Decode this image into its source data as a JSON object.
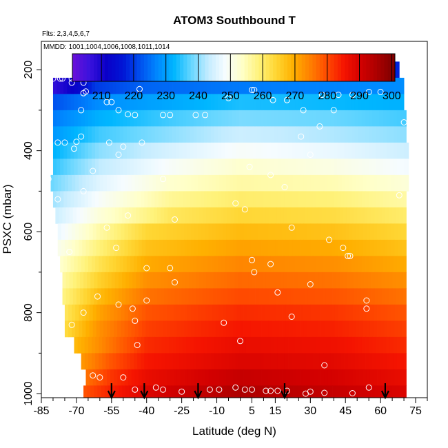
{
  "chart_data": {
    "type": "heatmap",
    "title": "ATOM3 Southbound T",
    "annotations": {
      "flights": "Flts: 2,3,4,5,6,7",
      "dates": "MMDD: 1001,1004,1006,1008,1011,1014"
    },
    "xlabel": "Latitude (deg N)",
    "ylabel": "PSXC (mbar)",
    "xlim": [
      -85,
      80
    ],
    "ylim": [
      1010,
      130
    ],
    "y_reversed": true,
    "x_ticks": [
      -85,
      -70,
      -55,
      -40,
      -25,
      -10,
      5,
      15,
      30,
      45,
      60,
      75
    ],
    "x_minor_ticks": [
      -80,
      -75,
      -65,
      -60,
      -50,
      -45,
      -35,
      -30,
      -20,
      -15,
      -5,
      0,
      10,
      20,
      25,
      35,
      40,
      50,
      55,
      65,
      70,
      80
    ],
    "y_ticks": [
      200,
      400,
      600,
      800,
      1000
    ],
    "y_minor_ticks": [
      300,
      500,
      700,
      900
    ],
    "colorbar": {
      "min": 201,
      "max": 301,
      "ticks": [
        210,
        220,
        230,
        240,
        250,
        260,
        270,
        280,
        290,
        300
      ],
      "colors": [
        "#6a0fd8",
        "#3b12dd",
        "#0a00c8",
        "#0016d6",
        "#0050ee",
        "#0088ff",
        "#00b6ff",
        "#66d6ff",
        "#c4ecff",
        "#f6fcff",
        "#ffffc8",
        "#fff27a",
        "#ffd633",
        "#ffb000",
        "#ff8000",
        "#ff4a00",
        "#f51400",
        "#d20000",
        "#a80000",
        "#7a0000"
      ]
    },
    "levels": [
      {
        "p": 200,
        "lat_min": -61,
        "lat_max": 68,
        "t": [
          [
            -61,
            220
          ],
          [
            -40,
            219
          ],
          [
            0,
            217
          ],
          [
            40,
            217
          ],
          [
            68,
            218
          ]
        ]
      },
      {
        "p": 240,
        "lat_min": -80,
        "lat_max": 70,
        "t": [
          [
            -80,
            207
          ],
          [
            -68,
            214
          ],
          [
            -62,
            220
          ],
          [
            -40,
            224
          ],
          [
            0,
            226
          ],
          [
            40,
            227
          ],
          [
            70,
            228
          ]
        ]
      },
      {
        "p": 280,
        "lat_min": -80,
        "lat_max": 70,
        "t": [
          [
            -80,
            222
          ],
          [
            -60,
            228
          ],
          [
            -30,
            231
          ],
          [
            0,
            234
          ],
          [
            40,
            233
          ],
          [
            70,
            232
          ]
        ]
      },
      {
        "p": 320,
        "lat_min": -80,
        "lat_max": 71,
        "t": [
          [
            -80,
            226
          ],
          [
            -60,
            232
          ],
          [
            -30,
            236
          ],
          [
            0,
            239
          ],
          [
            40,
            238
          ],
          [
            71,
            236
          ]
        ]
      },
      {
        "p": 360,
        "lat_min": -80,
        "lat_max": 71,
        "t": [
          [
            -80,
            229
          ],
          [
            -60,
            236
          ],
          [
            -30,
            240
          ],
          [
            0,
            244
          ],
          [
            40,
            242
          ],
          [
            71,
            240
          ]
        ]
      },
      {
        "p": 400,
        "lat_min": -80,
        "lat_max": 72,
        "t": [
          [
            -80,
            232
          ],
          [
            -60,
            240
          ],
          [
            -30,
            245
          ],
          [
            0,
            249
          ],
          [
            40,
            247
          ],
          [
            72,
            244
          ]
        ]
      },
      {
        "p": 440,
        "lat_min": -80,
        "lat_max": 72,
        "t": [
          [
            -80,
            235
          ],
          [
            -60,
            243
          ],
          [
            -30,
            249
          ],
          [
            0,
            253
          ],
          [
            40,
            251
          ],
          [
            72,
            248
          ]
        ]
      },
      {
        "p": 480,
        "lat_min": -81,
        "lat_max": 72,
        "t": [
          [
            -81,
            238
          ],
          [
            -60,
            246
          ],
          [
            -30,
            253
          ],
          [
            0,
            256
          ],
          [
            40,
            255
          ],
          [
            72,
            252
          ]
        ]
      },
      {
        "p": 520,
        "lat_min": -80,
        "lat_max": 71,
        "t": [
          [
            -80,
            241
          ],
          [
            -60,
            249
          ],
          [
            -30,
            257
          ],
          [
            0,
            260
          ],
          [
            40,
            259
          ],
          [
            71,
            256
          ]
        ]
      },
      {
        "p": 560,
        "lat_min": -79,
        "lat_max": 71,
        "t": [
          [
            -79,
            244
          ],
          [
            -60,
            252
          ],
          [
            -30,
            261
          ],
          [
            0,
            264
          ],
          [
            40,
            263
          ],
          [
            71,
            260
          ]
        ]
      },
      {
        "p": 600,
        "lat_min": -78,
        "lat_max": 71,
        "t": [
          [
            -78,
            247
          ],
          [
            -60,
            256
          ],
          [
            -40,
            264
          ],
          [
            0,
            268
          ],
          [
            40,
            267
          ],
          [
            71,
            264
          ]
        ]
      },
      {
        "p": 640,
        "lat_min": -78,
        "lat_max": 71,
        "t": [
          [
            -78,
            250
          ],
          [
            -60,
            259
          ],
          [
            -40,
            267
          ],
          [
            0,
            271
          ],
          [
            40,
            270
          ],
          [
            71,
            267
          ]
        ]
      },
      {
        "p": 680,
        "lat_min": -77,
        "lat_max": 71,
        "t": [
          [
            -77,
            253
          ],
          [
            -60,
            262
          ],
          [
            -40,
            270
          ],
          [
            0,
            274
          ],
          [
            40,
            273
          ],
          [
            71,
            270
          ]
        ]
      },
      {
        "p": 720,
        "lat_min": -76,
        "lat_max": 71,
        "t": [
          [
            -76,
            256
          ],
          [
            -60,
            265
          ],
          [
            -40,
            273
          ],
          [
            0,
            277
          ],
          [
            40,
            276
          ],
          [
            71,
            273
          ]
        ]
      },
      {
        "p": 760,
        "lat_min": -76,
        "lat_max": 71,
        "t": [
          [
            -76,
            258
          ],
          [
            -60,
            268
          ],
          [
            -40,
            276
          ],
          [
            0,
            280
          ],
          [
            40,
            279
          ],
          [
            71,
            276
          ]
        ]
      },
      {
        "p": 800,
        "lat_min": -75,
        "lat_max": 71,
        "t": [
          [
            -75,
            261
          ],
          [
            -60,
            271
          ],
          [
            -40,
            279
          ],
          [
            0,
            283
          ],
          [
            40,
            282
          ],
          [
            71,
            279
          ]
        ]
      },
      {
        "p": 840,
        "lat_min": -75,
        "lat_max": 71,
        "t": [
          [
            -75,
            263
          ],
          [
            -60,
            273
          ],
          [
            -40,
            281
          ],
          [
            0,
            285
          ],
          [
            40,
            284
          ],
          [
            71,
            281
          ]
        ]
      },
      {
        "p": 880,
        "lat_min": -71,
        "lat_max": 71,
        "t": [
          [
            -71,
            268
          ],
          [
            -55,
            276
          ],
          [
            -40,
            283
          ],
          [
            0,
            287
          ],
          [
            40,
            286
          ],
          [
            71,
            283
          ]
        ]
      },
      {
        "p": 920,
        "lat_min": -68,
        "lat_max": 71,
        "t": [
          [
            -68,
            272
          ],
          [
            -55,
            279
          ],
          [
            -40,
            285
          ],
          [
            0,
            289
          ],
          [
            40,
            288
          ],
          [
            71,
            285
          ]
        ]
      },
      {
        "p": 960,
        "lat_min": -66,
        "lat_max": 71,
        "t": [
          [
            -66,
            276
          ],
          [
            -55,
            282
          ],
          [
            -40,
            287
          ],
          [
            0,
            292
          ],
          [
            40,
            290
          ],
          [
            71,
            287
          ]
        ]
      },
      {
        "p": 1000,
        "lat_min": -67,
        "lat_max": 71,
        "t": [
          [
            -67,
            279
          ],
          [
            -55,
            284
          ],
          [
            -40,
            289
          ],
          [
            0,
            295
          ],
          [
            40,
            292
          ],
          [
            71,
            289
          ]
        ]
      }
    ],
    "observations": [
      [
        -80,
        222
      ],
      [
        -77,
        222
      ],
      [
        -76,
        222
      ],
      [
        -72,
        222
      ],
      [
        -69,
        222
      ],
      [
        -67,
        222
      ],
      [
        -66,
        222
      ],
      [
        -55,
        196
      ],
      [
        -61,
        205
      ],
      [
        -58,
        222
      ],
      [
        -51,
        222
      ],
      [
        -47,
        222
      ],
      [
        -43,
        248
      ],
      [
        -18,
        200
      ],
      [
        -8,
        222
      ],
      [
        16,
        200
      ],
      [
        17,
        200
      ],
      [
        51,
        200
      ],
      [
        58,
        200
      ],
      [
        -72,
        232
      ],
      [
        -67,
        232
      ],
      [
        -66,
        254
      ],
      [
        -67,
        258
      ],
      [
        -57,
        280
      ],
      [
        -55,
        280
      ],
      [
        -83,
        310
      ],
      [
        -68,
        300
      ],
      [
        -52,
        300
      ],
      [
        -33,
        312
      ],
      [
        -30,
        312
      ],
      [
        -19,
        312
      ],
      [
        -15,
        312
      ],
      [
        -48,
        310
      ],
      [
        -45,
        312
      ],
      [
        -5,
        270
      ],
      [
        5,
        250
      ],
      [
        6,
        250
      ],
      [
        14,
        275
      ],
      [
        20,
        275
      ],
      [
        27,
        300
      ],
      [
        35,
        262
      ],
      [
        42,
        262
      ],
      [
        48,
        262
      ],
      [
        55,
        255
      ],
      [
        60,
        255
      ],
      [
        70,
        330
      ],
      [
        40,
        300
      ],
      [
        -78,
        380
      ],
      [
        -75,
        380
      ],
      [
        -70,
        378
      ],
      [
        -68,
        365
      ],
      [
        -71,
        395
      ],
      [
        -56,
        380
      ],
      [
        -50,
        390
      ],
      [
        -42,
        380
      ],
      [
        -52,
        410
      ],
      [
        26,
        365
      ],
      [
        34,
        340
      ],
      [
        30,
        410
      ],
      [
        4,
        440
      ],
      [
        -63,
        450
      ],
      [
        -82,
        470
      ],
      [
        -78,
        520
      ],
      [
        -67,
        500
      ],
      [
        -33,
        470
      ],
      [
        13,
        460
      ],
      [
        19,
        490
      ],
      [
        68,
        510
      ],
      [
        -57,
        590
      ],
      [
        -48,
        560
      ],
      [
        -28,
        570
      ],
      [
        -2,
        530
      ],
      [
        2,
        545
      ],
      [
        22,
        590
      ],
      [
        38,
        620
      ],
      [
        -40,
        690
      ],
      [
        -30,
        690
      ],
      [
        5,
        670
      ],
      [
        6,
        700
      ],
      [
        13,
        680
      ],
      [
        44,
        640
      ],
      [
        47,
        660
      ],
      [
        46,
        660
      ],
      [
        -73,
        650
      ],
      [
        -53,
        640
      ],
      [
        -40,
        770
      ],
      [
        -61,
        760
      ],
      [
        -28,
        725
      ],
      [
        16,
        750
      ],
      [
        30,
        730
      ],
      [
        -52,
        780
      ],
      [
        -46,
        790
      ],
      [
        -67,
        800
      ],
      [
        -72,
        830
      ],
      [
        -45,
        820
      ],
      [
        -7,
        825
      ],
      [
        0,
        870
      ],
      [
        22,
        810
      ],
      [
        54,
        770
      ],
      [
        54,
        790
      ],
      [
        -44,
        880
      ],
      [
        36,
        930
      ],
      [
        -71,
        950
      ],
      [
        -63,
        955
      ],
      [
        -60,
        960
      ],
      [
        -50,
        960
      ],
      [
        -33,
        990
      ],
      [
        -25,
        995
      ],
      [
        -13,
        990
      ],
      [
        -2,
        985
      ],
      [
        2,
        990
      ],
      [
        5,
        990
      ],
      [
        11,
        993
      ],
      [
        13,
        993
      ],
      [
        16,
        993
      ],
      [
        20,
        993
      ],
      [
        30,
        995
      ],
      [
        36,
        998
      ],
      [
        48,
        999
      ],
      [
        55,
        985
      ],
      [
        -45,
        990
      ],
      [
        -36,
        985
      ],
      [
        -9,
        990
      ],
      [
        28,
        1000
      ]
    ],
    "arrows_lat": [
      -55,
      -41,
      -18,
      19,
      62
    ]
  }
}
